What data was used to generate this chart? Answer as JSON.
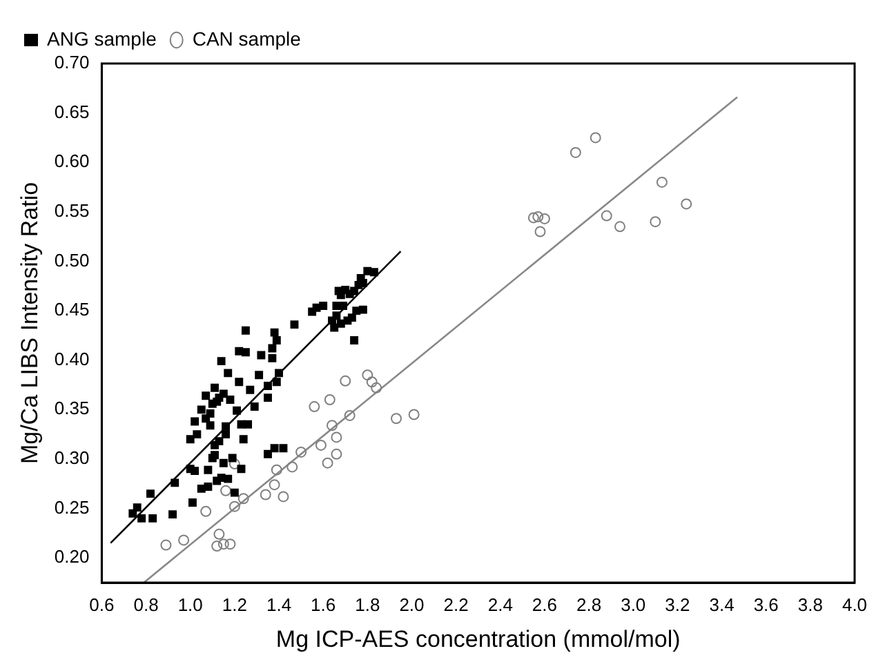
{
  "chart_data": {
    "type": "scatter",
    "xlabel": "Mg ICP-AES concentration (mmol/mol)",
    "ylabel": "Mg/Ca LIBS Intensity Ratio",
    "xlim": [
      0.6,
      4.0
    ],
    "ylim": [
      0.175,
      0.7
    ],
    "xticks": [
      0.6,
      0.8,
      {
        "value": 1,
        "label": "1.0"
      },
      1.2,
      1.4,
      1.6,
      1.8,
      {
        "value": 2,
        "label": "2.0"
      },
      2.2,
      2.4,
      2.6,
      2.8,
      {
        "value": 3,
        "label": "3.0"
      },
      3.2,
      3.4,
      3.6,
      3.8,
      {
        "value": 4,
        "label": "4.0"
      }
    ],
    "yticks": [
      {
        "value": 0.2,
        "label": "0.20"
      },
      0.25,
      {
        "value": 0.3,
        "label": "0.30"
      },
      0.35,
      {
        "value": 0.4,
        "label": "0.40"
      },
      0.45,
      {
        "value": 0.5,
        "label": "0.50"
      },
      0.55,
      {
        "value": 0.6,
        "label": "0.60"
      },
      0.65,
      {
        "value": 0.7,
        "label": "0.70"
      }
    ],
    "grid": false,
    "legend": "top left",
    "series": [
      {
        "name": "ANG sample",
        "marker": "square",
        "color": "#000000",
        "x": [
          0.74,
          0.76,
          0.78,
          0.82,
          0.83,
          0.92,
          0.93,
          1.0,
          1.0,
          1.01,
          1.02,
          1.02,
          1.03,
          1.05,
          1.05,
          1.07,
          1.07,
          1.08,
          1.08,
          1.09,
          1.09,
          1.1,
          1.1,
          1.11,
          1.11,
          1.11,
          1.12,
          1.12,
          1.13,
          1.13,
          1.14,
          1.14,
          1.15,
          1.15,
          1.16,
          1.16,
          1.17,
          1.17,
          1.18,
          1.19,
          1.2,
          1.21,
          1.22,
          1.22,
          1.23,
          1.23,
          1.24,
          1.25,
          1.25,
          1.26,
          1.27,
          1.29,
          1.31,
          1.32,
          1.35,
          1.35,
          1.35,
          1.37,
          1.37,
          1.38,
          1.38,
          1.39,
          1.39,
          1.4,
          1.42,
          1.47,
          1.55,
          1.57,
          1.6,
          1.64,
          1.65,
          1.66,
          1.66,
          1.67,
          1.68,
          1.68,
          1.69,
          1.7,
          1.71,
          1.72,
          1.73,
          1.74,
          1.74,
          1.75,
          1.76,
          1.77,
          1.78,
          1.78,
          1.8,
          1.83
        ],
        "values": [
          0.245,
          0.251,
          0.24,
          0.265,
          0.24,
          0.244,
          0.276,
          0.32,
          0.29,
          0.256,
          0.338,
          0.288,
          0.325,
          0.27,
          0.35,
          0.341,
          0.364,
          0.289,
          0.272,
          0.334,
          0.346,
          0.301,
          0.356,
          0.372,
          0.314,
          0.304,
          0.278,
          0.358,
          0.362,
          0.318,
          0.399,
          0.281,
          0.366,
          0.296,
          0.333,
          0.325,
          0.387,
          0.28,
          0.36,
          0.301,
          0.266,
          0.349,
          0.409,
          0.378,
          0.335,
          0.29,
          0.32,
          0.43,
          0.408,
          0.335,
          0.37,
          0.353,
          0.385,
          0.405,
          0.362,
          0.305,
          0.374,
          0.402,
          0.412,
          0.428,
          0.311,
          0.378,
          0.42,
          0.387,
          0.311,
          0.436,
          0.449,
          0.453,
          0.455,
          0.44,
          0.433,
          0.455,
          0.445,
          0.47,
          0.437,
          0.466,
          0.455,
          0.471,
          0.44,
          0.467,
          0.443,
          0.42,
          0.47,
          0.45,
          0.476,
          0.483,
          0.451,
          0.478,
          0.49,
          0.489
        ]
      },
      {
        "name": "CAN sample",
        "marker": "circle",
        "color": "#808080",
        "x": [
          0.89,
          0.97,
          1.07,
          1.12,
          1.13,
          1.15,
          1.18,
          1.16,
          1.2,
          1.2,
          1.24,
          1.34,
          1.38,
          1.39,
          1.42,
          1.46,
          1.5,
          1.56,
          1.59,
          1.62,
          1.63,
          1.64,
          1.66,
          1.66,
          1.7,
          1.72,
          1.8,
          1.82,
          1.84,
          1.93,
          2.01,
          2.55,
          2.57,
          2.58,
          2.6,
          2.74,
          2.83,
          2.88,
          2.94,
          3.1,
          3.13,
          3.24
        ],
        "values": [
          0.213,
          0.218,
          0.247,
          0.212,
          0.224,
          0.214,
          0.214,
          0.268,
          0.295,
          0.252,
          0.26,
          0.264,
          0.274,
          0.289,
          0.262,
          0.292,
          0.307,
          0.353,
          0.314,
          0.296,
          0.36,
          0.334,
          0.322,
          0.305,
          0.379,
          0.344,
          0.385,
          0.378,
          0.372,
          0.341,
          0.345,
          0.544,
          0.545,
          0.53,
          0.543,
          0.61,
          0.625,
          0.546,
          0.535,
          0.54,
          0.58,
          0.558
        ]
      },
      {
        "type": "line",
        "marker": "none",
        "color": "#000000",
        "x": [
          0.64,
          1.95
        ],
        "values": [
          0.215,
          0.51
        ]
      },
      {
        "type": "line",
        "marker": "none",
        "color": "#888888",
        "x": [
          0.79,
          3.47
        ],
        "values": [
          0.175,
          0.666
        ]
      }
    ]
  }
}
